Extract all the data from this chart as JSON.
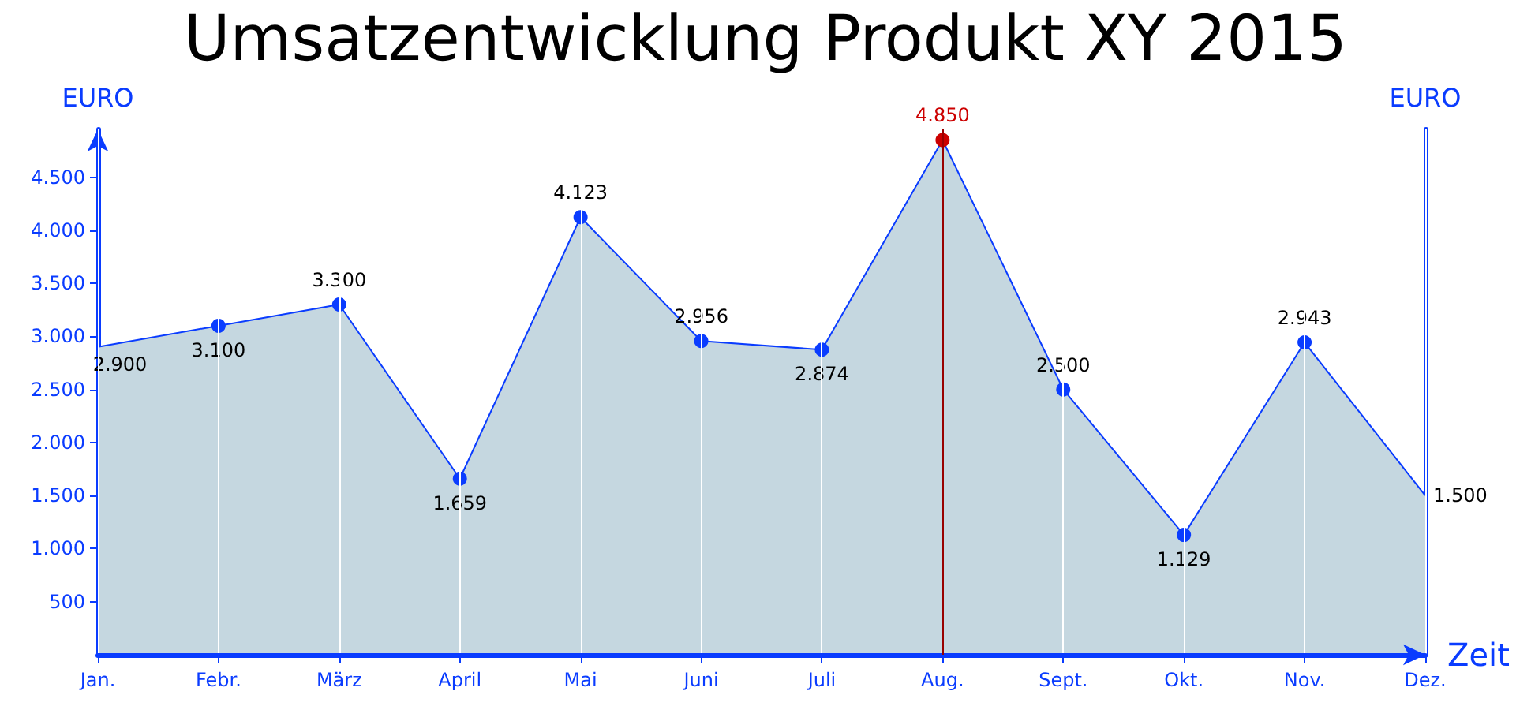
{
  "chart_data": {
    "type": "area",
    "title": "Umsatzentwicklung Produkt XY 2015",
    "xlabel": "Zeit",
    "ylabel": "EURO",
    "y2label": "EURO",
    "categories": [
      "Jan.",
      "Febr.",
      "März",
      "April",
      "Mai",
      "Juni",
      "Juli",
      "Aug.",
      "Sept.",
      "Okt.",
      "Nov.",
      "Dez."
    ],
    "series": [
      {
        "color": "#0a3cff",
        "values": [
          2900,
          3100,
          3300,
          1659,
          4123,
          2956,
          2874,
          4850,
          2500,
          1129,
          2943,
          1500
        ],
        "colors": [
          null,
          "#0a3cff",
          "#0a3cff",
          "#0a3cff",
          "#0a3cff",
          "#0a3cff",
          "#0a3cff",
          "#cc0000",
          "#0a3cff",
          "#0a3cff",
          "#0a3cff",
          null
        ],
        "value_labels": [
          "2.900",
          "3.100",
          "3.300",
          "1.659",
          "4.123",
          "2.956",
          "2.874",
          "4.850",
          "2.500",
          "1.129",
          "2.943",
          "1.500"
        ]
      }
    ],
    "ylim": [
      0,
      4950
    ],
    "yticks": [
      {
        "value": 500,
        "label": "500"
      },
      {
        "value": 1000,
        "label": "1.000"
      },
      {
        "value": 1500,
        "label": "1.500"
      },
      {
        "value": 2000,
        "label": "2.000"
      },
      {
        "value": 2500,
        "label": "2.500"
      },
      {
        "value": 3000,
        "label": "3.000"
      },
      {
        "value": 3500,
        "label": "3.500"
      },
      {
        "value": 4000,
        "label": "4.000"
      },
      {
        "value": 4500,
        "label": "4.500"
      }
    ],
    "ref_lines": [
      {
        "axis": "x",
        "value": "Aug.",
        "color": "#990000"
      }
    ],
    "grid": "x",
    "marker": "circle"
  }
}
